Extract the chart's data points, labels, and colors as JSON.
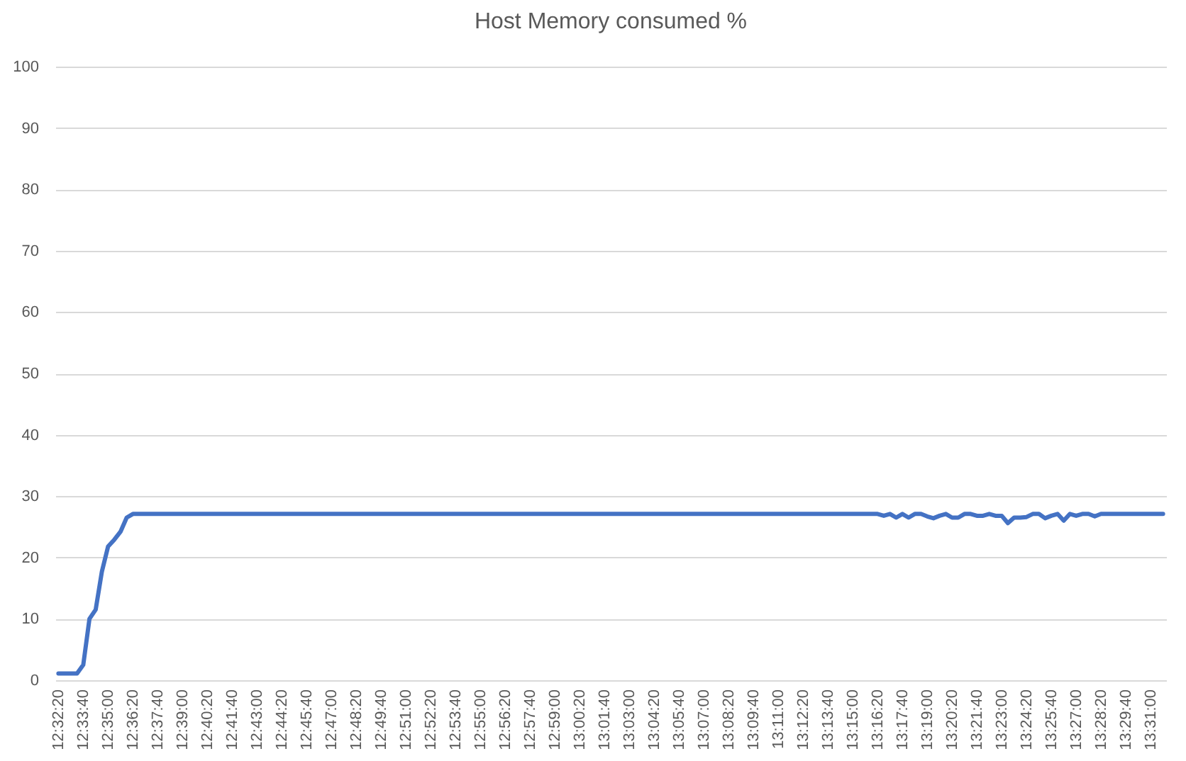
{
  "chart_data": {
    "type": "line",
    "title": "Host Memory consumed %",
    "categories": [
      "12:32:20",
      null,
      null,
      null,
      "12:33:40",
      null,
      null,
      null,
      "12:35:00",
      null,
      null,
      null,
      "12:36:20",
      null,
      null,
      null,
      "12:37:40",
      null,
      null,
      null,
      "12:39:00",
      null,
      null,
      null,
      "12:40:20",
      null,
      null,
      null,
      "12:41:40",
      null,
      null,
      null,
      "12:43:00",
      null,
      null,
      null,
      "12:44:20",
      null,
      null,
      null,
      "12:45:40",
      null,
      null,
      null,
      "12:47:00",
      null,
      null,
      null,
      "12:48:20",
      null,
      null,
      null,
      "12:49:40",
      null,
      null,
      null,
      "12:51:00",
      null,
      null,
      null,
      "12:52:20",
      null,
      null,
      null,
      "12:53:40",
      null,
      null,
      null,
      "12:55:00",
      null,
      null,
      null,
      "12:56:20",
      null,
      null,
      null,
      "12:57:40",
      null,
      null,
      null,
      "12:59:00",
      null,
      null,
      null,
      "13:00:20",
      null,
      null,
      null,
      "13:01:40",
      null,
      null,
      null,
      "13:03:00",
      null,
      null,
      null,
      "13:04:20",
      null,
      null,
      null,
      "13:05:40",
      null,
      null,
      null,
      "13:07:00",
      null,
      null,
      null,
      "13:08:20",
      null,
      null,
      null,
      "13:09:40",
      null,
      null,
      null,
      "13:11:00",
      null,
      null,
      null,
      "13:12:20",
      null,
      null,
      null,
      "13:13:40",
      null,
      null,
      null,
      "13:15:00",
      null,
      null,
      null,
      "13:16:20",
      null,
      null,
      null,
      "13:17:40",
      null,
      null,
      null,
      "13:19:00",
      null,
      null,
      null,
      "13:20:20",
      null,
      null,
      null,
      "13:21:40",
      null,
      null,
      null,
      "13:23:00",
      null,
      null,
      null,
      "13:24:20",
      null,
      null,
      null,
      "13:25:40",
      null,
      null,
      null,
      "13:27:00",
      null,
      null,
      null,
      "13:28:20",
      null,
      null,
      null,
      "13:29:40",
      null,
      null,
      null,
      "13:31:00",
      null,
      null
    ],
    "series": [
      {
        "color": "#4472c4",
        "values": [
          1.1,
          1.1,
          1.1,
          1.1,
          2.5,
          10,
          11.5,
          17.7,
          21.8,
          22.9,
          24.2,
          26.5,
          27.1,
          27.1,
          27.1,
          27.1,
          27.1,
          27.1,
          27.1,
          27.1,
          27.1,
          27.1,
          27.1,
          27.1,
          27.1,
          27.1,
          27.1,
          27.1,
          27.1,
          27.1,
          27.1,
          27.1,
          27.1,
          27.1,
          27.1,
          27.1,
          27.1,
          27.1,
          27.1,
          27.1,
          27.1,
          27.1,
          27.1,
          27.1,
          27.1,
          27.1,
          27.1,
          27.1,
          27.1,
          27.1,
          27.1,
          27.1,
          27.1,
          27.1,
          27.1,
          27.1,
          27.1,
          27.1,
          27.1,
          27.1,
          27.1,
          27.1,
          27.1,
          27.1,
          27.1,
          27.1,
          27.1,
          27.1,
          27.1,
          27.1,
          27.1,
          27.1,
          27.1,
          27.1,
          27.1,
          27.1,
          27.1,
          27.1,
          27.1,
          27.1,
          27.1,
          27.1,
          27.1,
          27.1,
          27.1,
          27.1,
          27.1,
          27.1,
          27.1,
          27.1,
          27.1,
          27.1,
          27.1,
          27.1,
          27.1,
          27.1,
          27.1,
          27.1,
          27.1,
          27.1,
          27.1,
          27.1,
          27.1,
          27.1,
          27.1,
          27.1,
          27.1,
          27.1,
          27.1,
          27.1,
          27.1,
          27.1,
          27.1,
          27.1,
          27.1,
          27.1,
          27.1,
          27.1,
          27.1,
          27.1,
          27.1,
          27.1,
          27.1,
          27.1,
          27.1,
          27.1,
          27.1,
          27.1,
          27.1,
          27.1,
          27.1,
          27.1,
          27.1,
          26.8,
          27.1,
          26.5,
          27.1,
          26.5,
          27.1,
          27.1,
          26.7,
          26.4,
          26.8,
          27.1,
          26.5,
          26.5,
          27.1,
          27.1,
          26.8,
          26.8,
          27.1,
          26.8,
          26.8,
          25.6,
          26.5,
          26.5,
          26.6,
          27.1,
          27.1,
          26.4,
          26.8,
          27.1,
          26.0,
          27.1,
          26.8,
          27.1,
          27.1,
          26.7,
          27.1,
          27.1,
          27.1,
          27.1,
          27.1,
          27.1,
          27.1,
          27.1,
          27.1,
          27.1,
          27.1
        ]
      }
    ],
    "ylim": [
      0,
      100
    ],
    "yticks": [
      0,
      10,
      20,
      30,
      40,
      50,
      60,
      70,
      80,
      90,
      100
    ],
    "grid": "y"
  }
}
